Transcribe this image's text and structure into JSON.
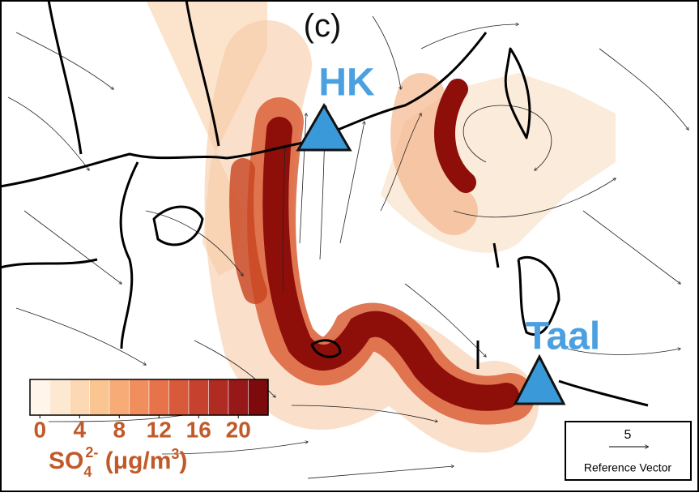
{
  "panel_label": "(c)",
  "markers": [
    {
      "label": "HK"
    },
    {
      "label": "Taal"
    }
  ],
  "colorbar": {
    "ticks": [
      0,
      4,
      8,
      12,
      16,
      20
    ],
    "lim": [
      0,
      24
    ],
    "colors": [
      "#fff5ea",
      "#fde9d2",
      "#fcd9b4",
      "#fbc592",
      "#f7ab76",
      "#f08e5d",
      "#e6734a",
      "#d85a3b",
      "#c6422e",
      "#b02b22",
      "#961818",
      "#7d0b0e"
    ],
    "title_parts": [
      "SO",
      "4",
      "2-",
      " (μg/m",
      "3",
      ")"
    ]
  },
  "reference_vector": {
    "value": 5,
    "label": "Reference Vector"
  }
}
